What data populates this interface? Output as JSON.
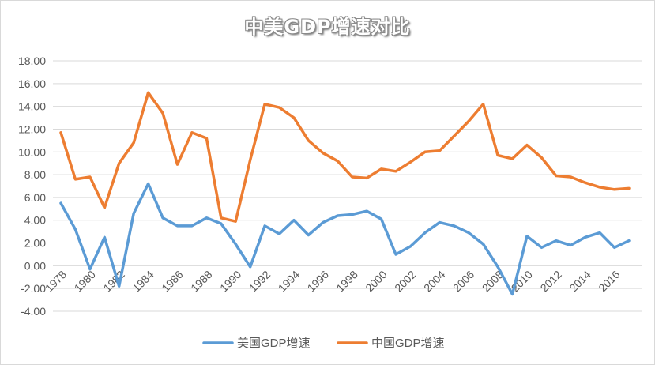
{
  "chart_data": {
    "type": "line",
    "title": "中美GDP增速对比",
    "x": [
      1978,
      1979,
      1980,
      1981,
      1982,
      1983,
      1984,
      1985,
      1986,
      1987,
      1988,
      1989,
      1990,
      1991,
      1992,
      1993,
      1994,
      1995,
      1996,
      1997,
      1998,
      1999,
      2000,
      2001,
      2002,
      2003,
      2004,
      2005,
      2006,
      2007,
      2008,
      2009,
      2010,
      2011,
      2012,
      2013,
      2014,
      2015,
      2016,
      2017
    ],
    "x_tick_labels": [
      "1978",
      "1980",
      "1982",
      "1984",
      "1986",
      "1988",
      "1990",
      "1992",
      "1994",
      "1996",
      "1998",
      "2000",
      "2002",
      "2004",
      "2006",
      "2008",
      "2010",
      "2012",
      "2014",
      "2016"
    ],
    "y_tick_labels": [
      "18.00",
      "16.00",
      "14.00",
      "12.00",
      "10.00",
      "8.00",
      "6.00",
      "4.00",
      "2.00",
      "0.00",
      "-2.00",
      "-4.00"
    ],
    "ylim": [
      -4,
      18
    ],
    "grid": true,
    "legend_position": "bottom",
    "series": [
      {
        "name": "美国GDP增速",
        "color": "#5b9bd5",
        "values": [
          5.5,
          3.2,
          -0.3,
          2.5,
          -1.8,
          4.6,
          7.2,
          4.2,
          3.5,
          3.5,
          4.2,
          3.7,
          1.9,
          -0.1,
          3.5,
          2.8,
          4.0,
          2.7,
          3.8,
          4.4,
          4.5,
          4.8,
          4.1,
          1.0,
          1.7,
          2.9,
          3.8,
          3.5,
          2.9,
          1.9,
          -0.1,
          -2.5,
          2.6,
          1.6,
          2.2,
          1.8,
          2.5,
          2.9,
          1.6,
          2.2
        ]
      },
      {
        "name": "中国GDP增速",
        "color": "#ed7d31",
        "values": [
          11.7,
          7.6,
          7.8,
          5.1,
          9.0,
          10.8,
          15.2,
          13.4,
          8.9,
          11.7,
          11.2,
          4.2,
          3.9,
          9.3,
          14.2,
          13.9,
          13.0,
          11.0,
          9.9,
          9.2,
          7.8,
          7.7,
          8.5,
          8.3,
          9.1,
          10.0,
          10.1,
          11.4,
          12.7,
          14.2,
          9.7,
          9.4,
          10.6,
          9.5,
          7.9,
          7.8,
          7.3,
          6.9,
          6.7,
          6.8
        ]
      }
    ]
  }
}
